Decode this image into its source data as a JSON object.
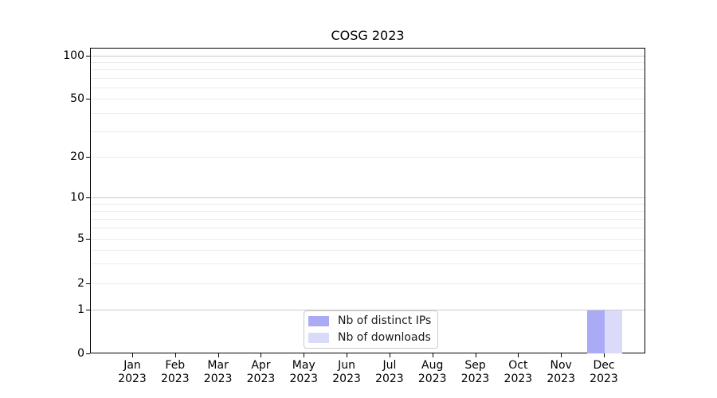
{
  "chart_data": {
    "type": "bar",
    "title": "COSG 2023",
    "categories": [
      "Jan",
      "Feb",
      "Mar",
      "Apr",
      "May",
      "Jun",
      "Jul",
      "Aug",
      "Sep",
      "Oct",
      "Nov",
      "Dec"
    ],
    "category_year_line": "2023",
    "series": [
      {
        "name": "Nb of distinct IPs",
        "color": "#aaaaf5",
        "values": [
          0,
          0,
          0,
          0,
          0,
          0,
          0,
          0,
          0,
          0,
          0,
          1
        ]
      },
      {
        "name": "Nb of downloads",
        "color": "#dadaf9",
        "values": [
          0,
          0,
          0,
          0,
          0,
          0,
          0,
          0,
          0,
          0,
          0,
          1
        ]
      }
    ],
    "xlabel": "",
    "ylabel": "",
    "yticks": [
      0,
      1,
      2,
      5,
      10,
      20,
      50,
      100
    ],
    "yscale": "log above 1, linear between 0 and 1",
    "ylim": [
      0,
      115
    ],
    "grid": "horizontal, major decades darker + faint log minors",
    "legend_position": "lower center inside plot",
    "colors": {
      "grid_major": "#c9c9c9",
      "grid_minor": "#ececec",
      "spine": "#000000",
      "text": "#000000",
      "legend_border": "#cccccc"
    }
  }
}
